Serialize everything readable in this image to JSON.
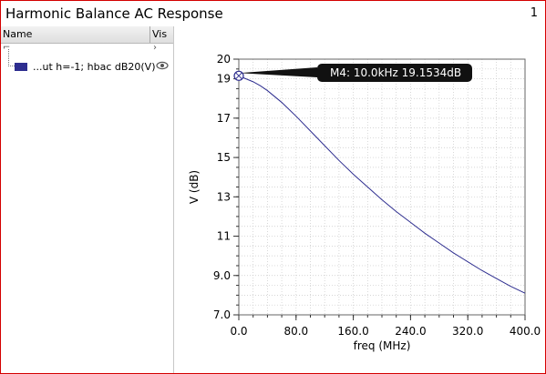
{
  "window": {
    "title": "Harmonic Balance AC Response",
    "number": "1"
  },
  "panel": {
    "col_name": "Name",
    "col_vis": "Vis",
    "expander": "⌐",
    "expander_vis": "›",
    "traces": [
      {
        "label": "...ut h=-1; hbac dB20(V)",
        "color": "#2d2d8f",
        "visible_icon": "eye-icon"
      }
    ]
  },
  "marker": {
    "label": "M4: 10.0kHz 19.1534dB",
    "x": 0.01,
    "y": 19.1534
  },
  "chart_data": {
    "type": "line",
    "xlabel": "freq (MHz)",
    "ylabel": "V (dB)",
    "xlim": [
      0,
      400
    ],
    "ylim": [
      7,
      20
    ],
    "xticks": [
      "0.0",
      "80.0",
      "160.0",
      "240.0",
      "320.0",
      "400.0"
    ],
    "yticks": [
      "20",
      "19",
      "17",
      "15",
      "13",
      "11",
      "9.0",
      "7.0"
    ],
    "grid": true,
    "series": [
      {
        "name": "...ut h=-1; hbac dB20(V)",
        "color": "#2d2d8f",
        "x": [
          0,
          10,
          20,
          30,
          40,
          50,
          60,
          70,
          80,
          100,
          120,
          140,
          160,
          180,
          200,
          220,
          240,
          260,
          280,
          300,
          320,
          340,
          360,
          380,
          400
        ],
        "y": [
          19.15,
          19.0,
          18.85,
          18.65,
          18.4,
          18.1,
          17.8,
          17.45,
          17.1,
          16.35,
          15.6,
          14.85,
          14.15,
          13.5,
          12.85,
          12.25,
          11.7,
          11.15,
          10.65,
          10.15,
          9.7,
          9.25,
          8.85,
          8.45,
          8.1
        ]
      }
    ]
  }
}
